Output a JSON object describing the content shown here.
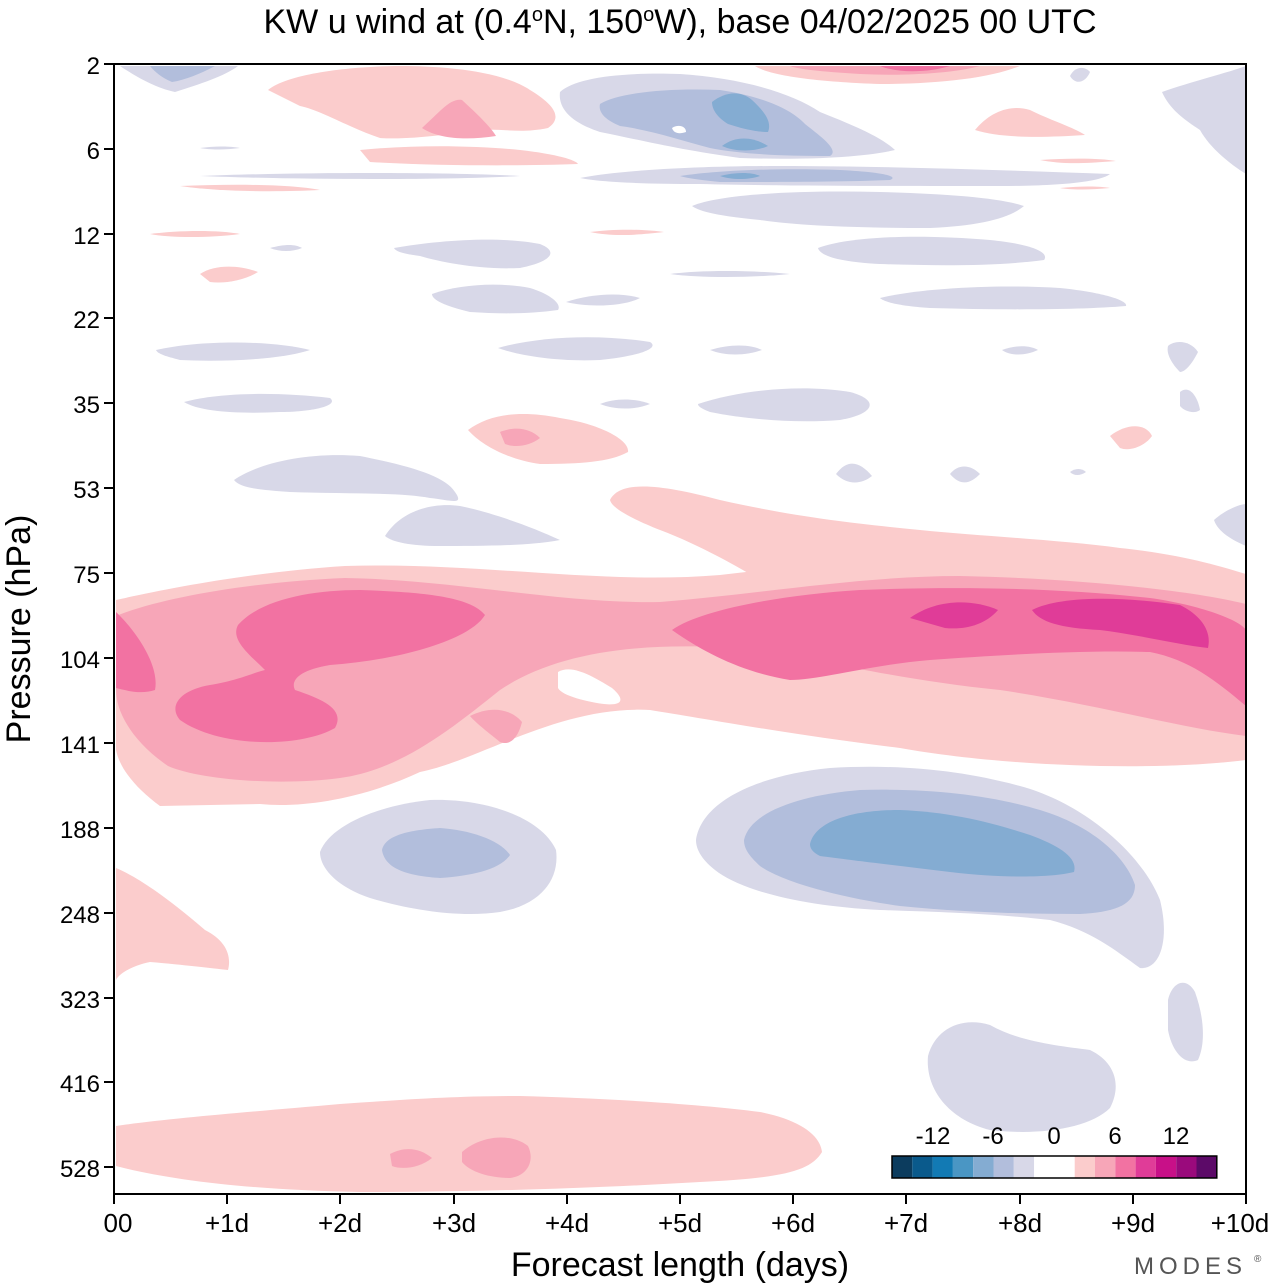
{
  "chart_data": {
    "type": "heatmap",
    "title_parts": {
      "pre": "KW u wind at (0.4",
      "deg1": "o",
      "mid": "N, 150",
      "deg2": "o",
      "post": "W),  base 04/02/2025  00 UTC"
    },
    "xlabel": "Forecast length (days)",
    "ylabel": "Pressure (hPa)",
    "x_ticks": [
      "00",
      "+1d",
      "+2d",
      "+3d",
      "+4d",
      "+5d",
      "+6d",
      "+7d",
      "+8d",
      "+9d",
      "+10d"
    ],
    "x_range_days": [
      0,
      10
    ],
    "y_ticks": [
      "2",
      "6",
      "12",
      "22",
      "35",
      "53",
      "75",
      "104",
      "141",
      "188",
      "248",
      "323",
      "416",
      "528"
    ],
    "y_scale": "log pressure, top 2 hPa to bottom ~700 hPa",
    "colorbar": {
      "tick_labels": [
        "-12",
        "-6",
        "0",
        "6",
        "12"
      ],
      "levels": [
        -16,
        -14,
        -12,
        -10,
        -8,
        -6,
        -4,
        -2,
        0,
        2,
        4,
        6,
        8,
        10,
        12,
        14,
        16
      ],
      "colors": [
        "#0c3c5e",
        "#0a5a8c",
        "#127ab4",
        "#4a96c4",
        "#84acd2",
        "#b2bedc",
        "#d8d8e8",
        "#ffffff",
        "#ffffff",
        "#fbcccc",
        "#f7a6b8",
        "#f272a2",
        "#e03c98",
        "#c81088",
        "#9a0a7c",
        "#5c0a68"
      ]
    },
    "features": [
      {
        "sign": "positive",
        "peak_ms": 10,
        "days": [
          0,
          10
        ],
        "pressure_hPa": [
          85,
          150
        ],
        "desc": "main westerly band"
      },
      {
        "sign": "negative",
        "peak_ms": -8,
        "days": [
          5,
          9
        ],
        "pressure_hPa": [
          175,
          260
        ]
      },
      {
        "sign": "negative",
        "peak_ms": -6,
        "days": [
          2.5,
          3.5
        ],
        "pressure_hPa": [
          180,
          220
        ]
      },
      {
        "sign": "positive",
        "peak_ms": 4,
        "days": [
          0,
          6
        ],
        "pressure_hPa": [
          490,
          600
        ]
      },
      {
        "sign": "negative",
        "peak_ms": -8,
        "days": [
          4.5,
          6
        ],
        "pressure_hPa": [
          3,
          8
        ]
      },
      {
        "sign": "positive",
        "peak_ms": 4,
        "days": [
          2.5,
          3.5
        ],
        "pressure_hPa": [
          3,
          8
        ]
      },
      {
        "sign": "negative",
        "peak_ms": -2,
        "days": [
          7,
          9
        ],
        "pressure_hPa": [
          330,
          480
        ]
      }
    ],
    "grid": false,
    "legend": "colorbar bottom-right inside plot"
  },
  "branding": "MODES",
  "branding_mark": "®"
}
